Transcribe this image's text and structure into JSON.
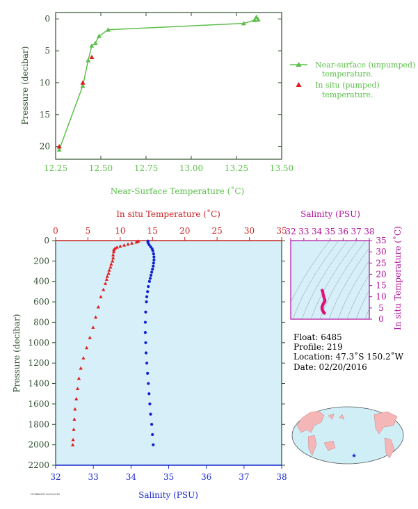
{
  "chart_data": [
    {
      "type": "line",
      "id": "near-surface",
      "xlabel": "Near-Surface Temperature (˚C)",
      "ylabel": "Pressure (decibar)",
      "xlim": [
        12.25,
        13.5
      ],
      "ylim": [
        0,
        22
      ],
      "xticks": [
        "12.25",
        "12.50",
        "12.75",
        "13.00",
        "13.25",
        "13.50"
      ],
      "yticks": [
        "0",
        "5",
        "10",
        "15",
        "20"
      ],
      "legend_position": "right",
      "colors": {
        "near_surface": "#5cbf4a",
        "in_situ": "#e01b1b",
        "axis": "#2f4f2f"
      },
      "series": [
        {
          "name": "Near-surface (unpumped) temperature.",
          "name_lines": [
            "Near-surface (unpumped)",
            "temperature."
          ],
          "marker": "triangle-line",
          "x": [
            12.27,
            12.4,
            12.43,
            12.45,
            12.47,
            12.49,
            12.54,
            13.29,
            13.35,
            13.36,
            13.37
          ],
          "y": [
            20.5,
            10.5,
            6.5,
            4.2,
            3.8,
            2.7,
            1.7,
            0.7,
            0.2,
            -0.3,
            0.1
          ]
        },
        {
          "name": "In situ (pumped) temperature.",
          "name_lines": [
            "In situ (pumped)",
            "temperature."
          ],
          "marker": "triangle",
          "x": [
            12.27,
            12.4,
            12.45
          ],
          "y": [
            20.0,
            10.0,
            6.0
          ]
        }
      ]
    },
    {
      "type": "line",
      "id": "profile",
      "x_top_label": "In situ Temperature (˚C)",
      "x_bottom_label": "Salinity (PSU)",
      "ylabel": "Pressure (decibar)",
      "temperature_lim": [
        0,
        35
      ],
      "salinity_lim": [
        32,
        38
      ],
      "ylim": [
        0,
        2200
      ],
      "temperature_ticks": [
        "0",
        "5",
        "10",
        "15",
        "20",
        "25",
        "30",
        "35"
      ],
      "salinity_ticks": [
        "32",
        "33",
        "34",
        "35",
        "36",
        "37",
        "38"
      ],
      "yticks": [
        "0",
        "200",
        "400",
        "600",
        "800",
        "1000",
        "1200",
        "1400",
        "1600",
        "1800",
        "2000",
        "2200"
      ],
      "series": [
        {
          "variable": "temperature",
          "color": "#e01b1b",
          "marker": "triangle",
          "pressure": [
            5,
            15,
            25,
            35,
            45,
            55,
            65,
            75,
            90,
            110,
            140,
            170,
            200,
            230,
            260,
            290,
            320,
            350,
            380,
            420,
            480,
            550,
            650,
            750,
            850,
            950,
            1050,
            1150,
            1250,
            1350,
            1450,
            1550,
            1650,
            1750,
            1850,
            1950,
            2000
          ],
          "values": [
            12.8,
            12.5,
            11.8,
            11.2,
            10.6,
            10.0,
            9.5,
            9.2,
            9.0,
            9.0,
            8.9,
            8.9,
            8.8,
            8.6,
            8.5,
            8.3,
            8.2,
            8.0,
            7.9,
            7.7,
            7.4,
            7.0,
            6.6,
            6.2,
            5.8,
            5.3,
            4.8,
            4.3,
            3.9,
            3.6,
            3.4,
            3.2,
            3.0,
            2.9,
            2.8,
            2.7,
            2.65
          ]
        },
        {
          "variable": "salinity",
          "color": "#1020d0",
          "marker": "dot",
          "pressure": [
            5,
            20,
            40,
            60,
            80,
            100,
            130,
            160,
            190,
            220,
            250,
            280,
            310,
            340,
            370,
            400,
            450,
            500,
            550,
            600,
            700,
            800,
            900,
            1000,
            1100,
            1200,
            1300,
            1400,
            1500,
            1600,
            1700,
            1800,
            1900,
            2000
          ],
          "values": [
            34.45,
            34.45,
            34.48,
            34.52,
            34.56,
            34.58,
            34.6,
            34.61,
            34.61,
            34.6,
            34.59,
            34.57,
            34.55,
            34.53,
            34.51,
            34.49,
            34.46,
            34.44,
            34.42,
            34.41,
            34.39,
            34.38,
            34.38,
            34.39,
            34.4,
            34.42,
            34.44,
            34.46,
            34.48,
            34.5,
            34.52,
            34.55,
            34.57,
            34.59
          ]
        }
      ]
    },
    {
      "type": "scatter",
      "id": "ts-diagram",
      "x_top_label": "Salinity (PSU)",
      "ylabel": "In situ Temperature (˚C)",
      "xlim": [
        32,
        38
      ],
      "ylim": [
        0,
        35
      ],
      "xticks": [
        "32",
        "33",
        "34",
        "35",
        "36",
        "37",
        "38"
      ],
      "yticks": [
        "0",
        "5",
        "10",
        "15",
        "20",
        "25",
        "30",
        "35"
      ],
      "color": "#e0107a",
      "x": [
        34.4,
        34.45,
        34.48,
        34.52,
        34.58,
        34.6,
        34.6,
        34.56,
        34.5,
        34.46,
        34.43,
        34.4,
        34.39,
        34.4,
        34.43,
        34.47,
        34.52,
        34.57
      ],
      "y": [
        12.8,
        12.0,
        11.0,
        10.0,
        9.0,
        8.5,
        8.0,
        7.5,
        7.0,
        6.5,
        6.0,
        5.5,
        5.0,
        4.5,
        4.0,
        3.5,
        3.0,
        2.7
      ]
    }
  ],
  "info": {
    "float": "Float:  6485",
    "profile": "Profile:  219",
    "location": "Location:  47.3˚S  150.2˚W",
    "date": "Date:  02/20/2016"
  },
  "map": {
    "marker_color": "#1a2bd0",
    "land_color": "#f4b6b6",
    "ocean_color": "#cfeef6"
  },
  "footer": {
    "code": "NCMBASTI 02/20/2016"
  }
}
